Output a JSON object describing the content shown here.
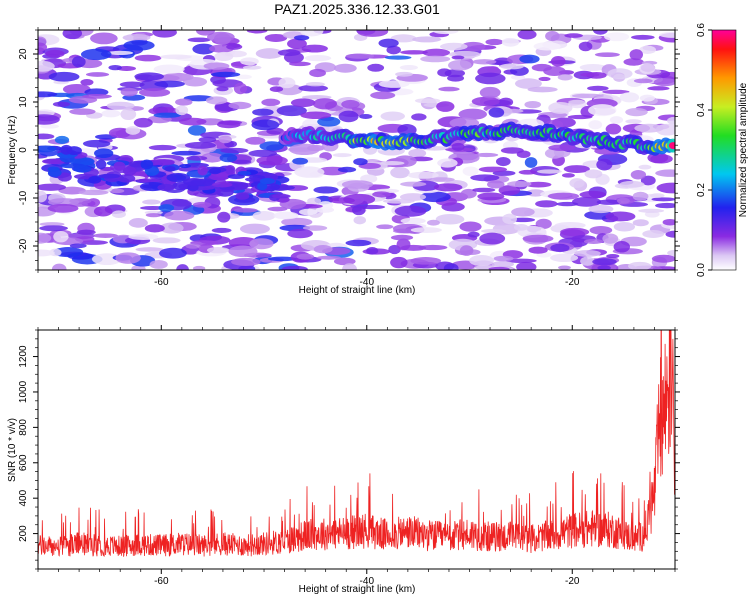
{
  "title": "PAZ1.2025.336.12.33.G01",
  "chart_data": [
    {
      "type": "heatmap",
      "name": "spectrogram",
      "xlabel": "Height of straight line (km)",
      "ylabel": "Frequency (Hz)",
      "xlim": [
        -72,
        -10
      ],
      "ylim": [
        -25,
        25
      ],
      "xticks": [
        -60,
        -40,
        -20
      ],
      "xtick_labels": [
        "-60",
        "-40",
        "-20"
      ],
      "yticks": [
        20,
        10,
        0,
        -10,
        -20
      ],
      "ytick_labels": [
        "20",
        "10",
        "0",
        "-10",
        "-20"
      ],
      "ridge": {
        "description": "dominant spectral band",
        "x": [
          -48,
          -45,
          -42,
          -40,
          -37,
          -34,
          -30,
          -26,
          -22,
          -19,
          -16,
          -13,
          -10
        ],
        "y": [
          3,
          3,
          2.5,
          2,
          1.5,
          2,
          3.5,
          4,
          3.5,
          2.5,
          1.5,
          1,
          0.5
        ],
        "amplitude": [
          0.2,
          0.28,
          0.35,
          0.42,
          0.45,
          0.3,
          0.35,
          0.3,
          0.34,
          0.3,
          0.32,
          0.33,
          0.58
        ]
      },
      "colorbar": {
        "label": "Normalized spectral amplitude",
        "range": [
          0.0,
          0.6
        ],
        "ticks": [
          0.0,
          0.2,
          0.4,
          0.6
        ],
        "tick_labels": [
          "0.0",
          "0.2",
          "0.4",
          "0.6"
        ]
      }
    },
    {
      "type": "line",
      "name": "snr",
      "xlabel": "Height of straight line (km)",
      "ylabel": "SNR (10 * v/v)",
      "xlim": [
        -72,
        -10
      ],
      "ylim": [
        0,
        1350
      ],
      "xticks": [
        -60,
        -40,
        -20
      ],
      "xtick_labels": [
        "-60",
        "-40",
        "-20"
      ],
      "yticks": [
        200,
        400,
        600,
        800,
        1000,
        1200
      ],
      "ytick_labels": [
        "200",
        "400",
        "600",
        "800",
        "1000",
        "1200"
      ],
      "color": "#ee2222",
      "series": [
        {
          "name": "SNR",
          "x": [
            -72,
            -70,
            -68,
            -66,
            -64,
            -62,
            -60,
            -58,
            -56,
            -54,
            -52,
            -50,
            -48,
            -46,
            -44,
            -42,
            -40,
            -38,
            -36,
            -34,
            -32,
            -30,
            -28,
            -26,
            -24,
            -22,
            -20,
            -18,
            -16,
            -14,
            -13,
            -12,
            -11.5,
            -11,
            -10.6,
            -10.3
          ],
          "y": [
            140,
            130,
            150,
            140,
            135,
            145,
            140,
            150,
            140,
            150,
            140,
            150,
            165,
            200,
            210,
            215,
            230,
            200,
            220,
            200,
            190,
            210,
            190,
            195,
            180,
            200,
            230,
            240,
            230,
            180,
            200,
            450,
            850,
            950,
            1150,
            1250
          ]
        }
      ]
    }
  ]
}
